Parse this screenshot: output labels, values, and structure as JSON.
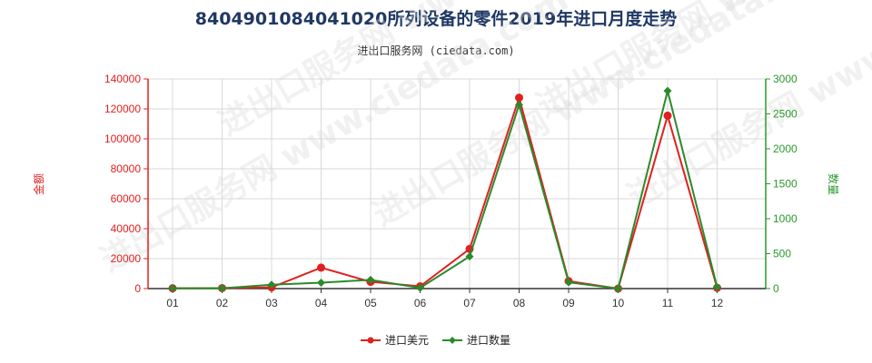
{
  "title": "8404901084041020所列设备的零件2019年进口月度走势",
  "subtitle": "进出口服务网 (ciedata.com)",
  "watermark": "进出口服务网 www.ciedata.com",
  "colors": {
    "left_axis": "#e02020",
    "right_axis": "#2a9a2a",
    "series_value": "#e02020",
    "series_qty": "#2a8a2a",
    "grid": "#d9d9d9"
  },
  "chart_data": {
    "type": "line",
    "categories": [
      "01",
      "02",
      "03",
      "04",
      "05",
      "06",
      "07",
      "08",
      "09",
      "10",
      "11",
      "12"
    ],
    "y_left": {
      "label": "金额",
      "ylim": [
        0,
        140000
      ],
      "ticks": [
        0,
        20000,
        40000,
        60000,
        80000,
        100000,
        120000,
        140000
      ]
    },
    "y_right": {
      "label": "数量",
      "ylim": [
        0,
        3000
      ],
      "ticks": [
        0,
        500,
        1000,
        1500,
        2000,
        2500,
        3000
      ]
    },
    "grid": true,
    "legend_position": "bottom-center",
    "series": [
      {
        "name": "进口美元",
        "axis": "left",
        "values": [
          200,
          300,
          800,
          14000,
          4500,
          1500,
          26500,
          127500,
          5000,
          0,
          115500,
          500
        ]
      },
      {
        "name": "进口数量",
        "axis": "right",
        "values": [
          5,
          5,
          55,
          85,
          125,
          10,
          460,
          2630,
          90,
          0,
          2830,
          20
        ]
      }
    ]
  }
}
